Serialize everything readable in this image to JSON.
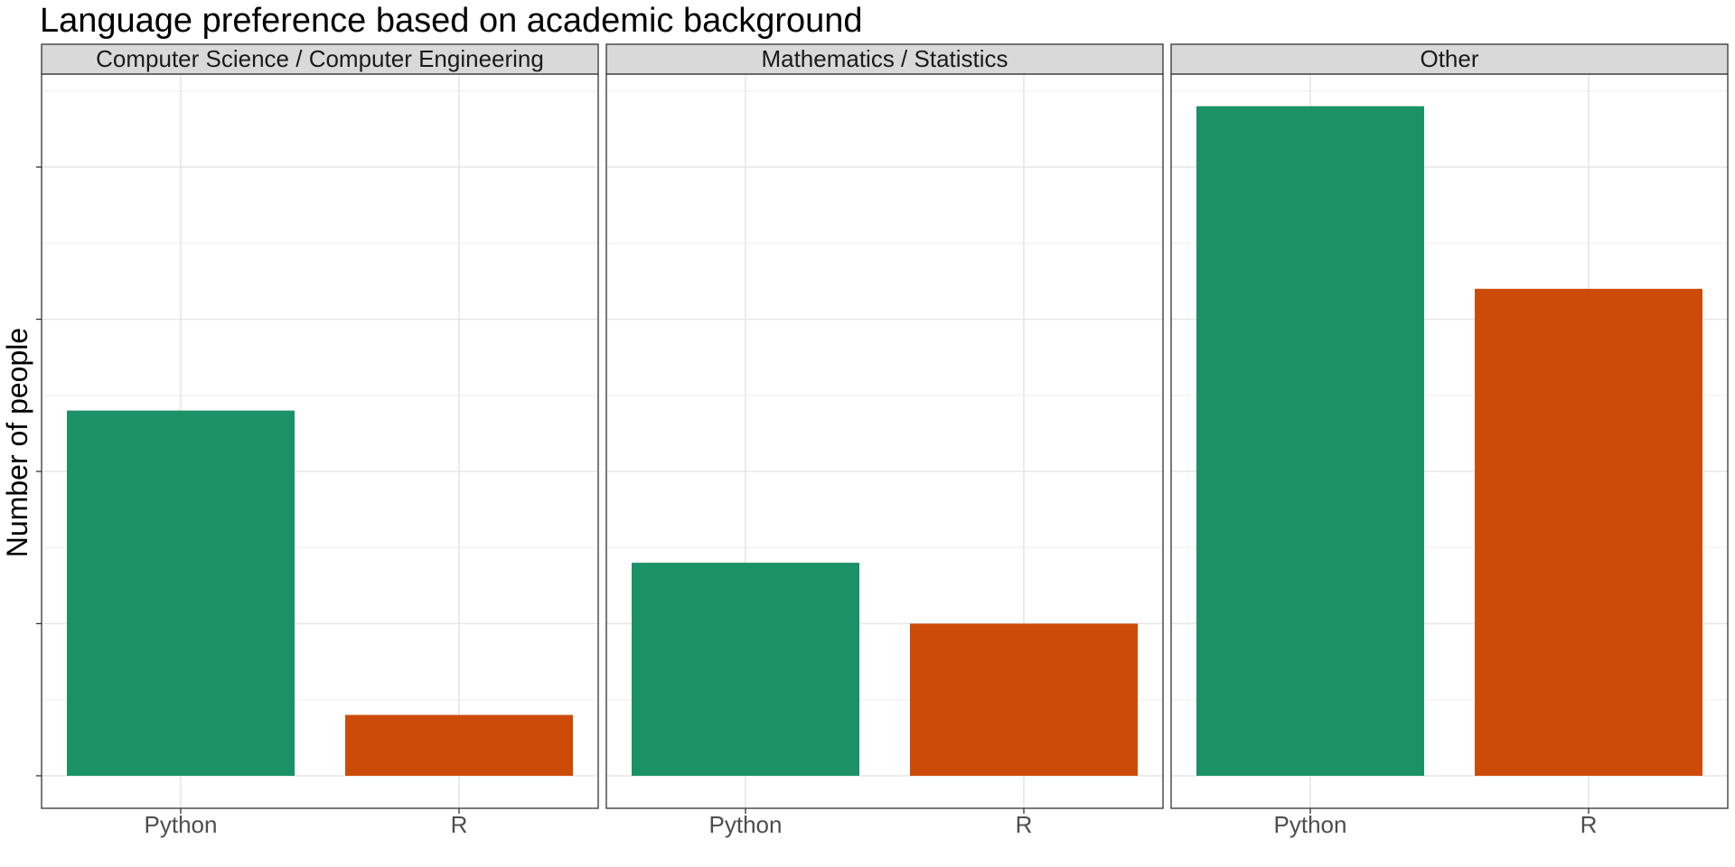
{
  "chart_data": {
    "type": "bar",
    "title": "Language preference based on academic background",
    "xlabel": "",
    "ylabel": "Number of people",
    "ylim": [
      0,
      4.6
    ],
    "categories": [
      "Python",
      "R"
    ],
    "legend": "none",
    "grid": true,
    "y_tick_labels_visible": false,
    "facets": [
      {
        "label": "Computer Science / Computer Engineering",
        "values": [
          2.4,
          0.4
        ]
      },
      {
        "label": "Mathematics / Statistics",
        "values": [
          1.4,
          1.0
        ]
      },
      {
        "label": "Other",
        "values": [
          4.4,
          3.2
        ]
      }
    ],
    "colors": {
      "Python": "#1b9168",
      "R": "#cd4b09"
    }
  }
}
